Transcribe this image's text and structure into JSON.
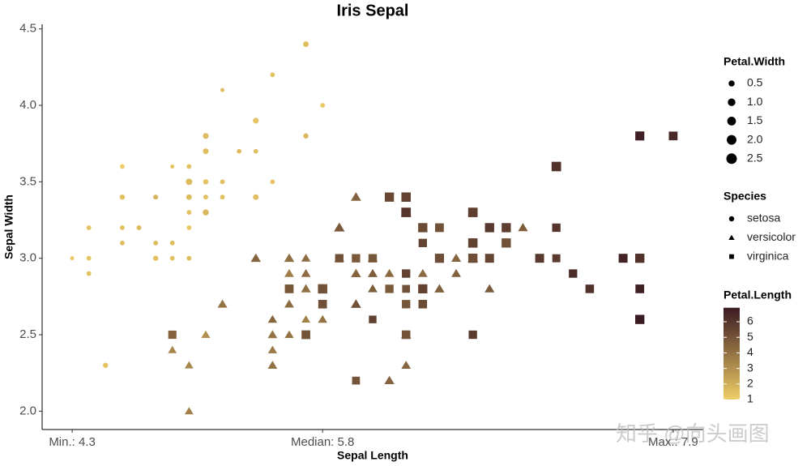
{
  "chart_data": {
    "type": "scatter",
    "title": "Iris Sepal",
    "x_label": "Sepal Length",
    "y_label": "Sepal Width",
    "xlim": [
      4.12,
      8.08
    ],
    "ylim": [
      1.88,
      4.53
    ],
    "xticks": [
      {
        "value": 4.3,
        "label": "Min.: 4.3"
      },
      {
        "value": 5.8,
        "label": "Median: 5.8"
      },
      {
        "value": 7.9,
        "label": "Max.: 7.9"
      }
    ],
    "yticks": [
      {
        "value": 2,
        "label": "2.0"
      },
      2.5,
      {
        "value": 3,
        "label": "3.0"
      },
      3.5,
      {
        "value": 4,
        "label": "4.0"
      },
      4.5
    ],
    "size_legend": {
      "title": "Petal.Width",
      "values": [
        0.5,
        {
          "value": 1,
          "label": "1.0"
        },
        1.5,
        {
          "value": 2,
          "label": "2.0"
        },
        2.5
      ]
    },
    "shape_legend": {
      "title": "Species"
    },
    "color_legend": {
      "title": "Petal.Length",
      "lim": [
        1,
        6.9
      ],
      "ticks": [
        1,
        2,
        3,
        4,
        5,
        6
      ],
      "color_low": "#efcd66",
      "color_high": "#3a1a22"
    },
    "watermark": "知乎 @向头画图",
    "series": [
      {
        "name": "setosa",
        "shape": "circle",
        "x": [
          5.1,
          4.9,
          4.7,
          4.6,
          5.0,
          5.4,
          4.6,
          5.0,
          4.4,
          4.9,
          5.4,
          4.8,
          4.8,
          4.3,
          5.8,
          5.7,
          5.4,
          5.1,
          5.7,
          5.1,
          5.4,
          5.1,
          4.6,
          5.1,
          4.8,
          5.0,
          5.0,
          5.2,
          5.2,
          4.7,
          4.8,
          5.4,
          5.2,
          5.5,
          4.9,
          5.0,
          5.5,
          4.9,
          4.4,
          5.1,
          5.0,
          4.5,
          4.4,
          5.0,
          5.1,
          4.8,
          5.1,
          4.6,
          5.3,
          5.0
        ],
        "values": [
          3.5,
          3.0,
          3.2,
          3.1,
          3.6,
          3.9,
          3.4,
          3.4,
          2.9,
          3.1,
          3.7,
          3.4,
          3.0,
          3.0,
          4.0,
          4.4,
          3.9,
          3.5,
          3.8,
          3.8,
          3.4,
          3.7,
          3.6,
          3.3,
          3.4,
          3.0,
          3.4,
          3.5,
          3.4,
          3.2,
          3.1,
          3.4,
          4.1,
          4.2,
          3.1,
          3.2,
          3.5,
          3.6,
          3.0,
          3.4,
          3.5,
          2.3,
          3.2,
          3.5,
          3.8,
          3.0,
          3.8,
          3.2,
          3.7,
          3.3
        ],
        "sizes": [
          0.2,
          0.2,
          0.2,
          0.2,
          0.2,
          0.4,
          0.3,
          0.2,
          0.2,
          0.1,
          0.2,
          0.2,
          0.1,
          0.1,
          0.2,
          0.4,
          0.4,
          0.3,
          0.3,
          0.3,
          0.2,
          0.4,
          0.2,
          0.5,
          0.2,
          0.2,
          0.4,
          0.2,
          0.2,
          0.2,
          0.2,
          0.4,
          0.1,
          0.2,
          0.2,
          0.2,
          0.2,
          0.1,
          0.2,
          0.2,
          0.3,
          0.3,
          0.2,
          0.6,
          0.4,
          0.3,
          0.2,
          0.2,
          0.2,
          0.2
        ],
        "color_values": [
          1.4,
          1.4,
          1.3,
          1.5,
          1.4,
          1.7,
          1.4,
          1.5,
          1.4,
          1.5,
          1.5,
          1.6,
          1.4,
          1.1,
          1.2,
          1.5,
          1.3,
          1.4,
          1.7,
          1.5,
          1.7,
          1.5,
          1.0,
          1.7,
          1.9,
          1.6,
          1.6,
          1.5,
          1.4,
          1.6,
          1.6,
          1.5,
          1.5,
          1.4,
          1.5,
          1.2,
          1.3,
          1.4,
          1.3,
          1.5,
          1.3,
          1.3,
          1.3,
          1.6,
          1.9,
          1.4,
          1.6,
          1.4,
          1.5,
          1.4
        ]
      },
      {
        "name": "versicolor",
        "shape": "triangle",
        "x": [
          7.0,
          6.4,
          6.9,
          5.5,
          6.5,
          5.7,
          6.3,
          4.9,
          6.6,
          5.2,
          5.0,
          5.9,
          6.0,
          6.1,
          5.6,
          6.7,
          5.6,
          5.8,
          6.2,
          5.6,
          5.9,
          6.1,
          6.3,
          6.1,
          6.4,
          6.6,
          6.8,
          6.7,
          6.0,
          5.7,
          5.5,
          5.5,
          5.8,
          6.0,
          5.4,
          6.0,
          6.7,
          6.3,
          5.6,
          5.5,
          5.5,
          6.1,
          5.8,
          5.0,
          5.6,
          5.7,
          5.7,
          6.2,
          5.1,
          5.7
        ],
        "values": [
          3.2,
          3.2,
          3.1,
          2.3,
          2.8,
          2.8,
          3.3,
          2.4,
          2.9,
          2.7,
          2.0,
          3.0,
          2.2,
          2.9,
          2.9,
          3.1,
          3.0,
          2.7,
          2.2,
          2.5,
          3.2,
          2.8,
          2.5,
          2.8,
          2.9,
          3.0,
          2.8,
          3.0,
          2.9,
          2.6,
          2.4,
          2.4,
          2.7,
          2.7,
          3.0,
          3.4,
          3.1,
          2.3,
          3.0,
          2.5,
          2.6,
          3.0,
          2.6,
          2.3,
          2.7,
          3.0,
          2.9,
          2.9,
          2.5,
          2.8
        ],
        "sizes": [
          1.4,
          1.5,
          1.5,
          1.3,
          1.5,
          1.3,
          1.6,
          1.0,
          1.3,
          1.4,
          1.0,
          1.5,
          1.0,
          1.4,
          1.3,
          1.4,
          1.5,
          1.0,
          1.5,
          1.1,
          1.8,
          1.3,
          1.5,
          1.2,
          1.3,
          1.4,
          1.4,
          1.7,
          1.5,
          1.0,
          1.1,
          1.0,
          1.2,
          1.6,
          1.5,
          1.6,
          1.5,
          1.3,
          1.3,
          1.3,
          1.2,
          1.4,
          1.2,
          1.0,
          1.3,
          1.2,
          1.3,
          1.3,
          1.1,
          1.3
        ],
        "color_values": [
          4.7,
          4.5,
          4.9,
          4.0,
          4.6,
          4.5,
          4.7,
          3.3,
          4.6,
          3.9,
          3.5,
          4.2,
          4.0,
          4.7,
          3.6,
          4.4,
          4.5,
          4.1,
          4.5,
          3.9,
          4.8,
          4.0,
          4.9,
          4.7,
          4.3,
          4.4,
          4.8,
          5.0,
          4.5,
          3.5,
          3.8,
          3.7,
          3.9,
          5.1,
          4.5,
          4.5,
          4.7,
          4.4,
          4.1,
          4.0,
          4.4,
          4.6,
          4.0,
          3.3,
          4.2,
          4.2,
          4.2,
          4.3,
          3.0,
          4.1
        ]
      },
      {
        "name": "virginica",
        "shape": "square",
        "x": [
          6.3,
          5.8,
          7.1,
          6.3,
          6.5,
          7.6,
          4.9,
          7.3,
          6.7,
          7.2,
          6.5,
          6.4,
          6.8,
          5.7,
          5.8,
          6.4,
          6.5,
          7.7,
          7.7,
          6.0,
          6.9,
          5.6,
          7.7,
          6.3,
          6.7,
          7.2,
          6.2,
          6.1,
          6.4,
          7.2,
          7.4,
          7.9,
          6.4,
          6.3,
          6.1,
          7.7,
          6.3,
          6.4,
          6.0,
          6.9,
          6.7,
          6.9,
          5.8,
          6.8,
          6.7,
          6.7,
          6.3,
          6.5,
          6.2,
          5.9
        ],
        "values": [
          3.3,
          2.7,
          3.0,
          2.9,
          3.0,
          3.0,
          2.5,
          2.9,
          2.5,
          3.6,
          3.2,
          2.7,
          3.0,
          2.5,
          2.8,
          3.2,
          3.0,
          3.8,
          2.6,
          2.2,
          3.2,
          2.8,
          2.8,
          2.7,
          3.3,
          3.2,
          2.8,
          3.0,
          2.8,
          3.0,
          2.8,
          3.8,
          2.8,
          2.8,
          2.6,
          3.0,
          3.4,
          3.1,
          3.0,
          3.1,
          3.1,
          3.1,
          2.7,
          3.2,
          3.3,
          3.0,
          2.5,
          3.0,
          3.4,
          3.0
        ],
        "sizes": [
          2.5,
          1.9,
          2.1,
          1.8,
          2.2,
          2.1,
          1.7,
          1.8,
          1.8,
          2.5,
          2.0,
          1.9,
          2.1,
          2.0,
          2.4,
          2.3,
          1.8,
          2.2,
          2.3,
          1.5,
          2.3,
          2.0,
          2.0,
          1.8,
          2.1,
          1.8,
          1.8,
          1.8,
          2.1,
          1.6,
          1.9,
          2.0,
          2.2,
          1.5,
          1.4,
          2.3,
          2.4,
          1.8,
          1.8,
          2.1,
          2.4,
          2.3,
          1.9,
          2.3,
          2.5,
          2.3,
          1.9,
          2.0,
          2.3,
          1.8
        ],
        "color_values": [
          6.0,
          5.1,
          5.9,
          5.6,
          5.8,
          6.6,
          4.5,
          6.3,
          5.8,
          6.1,
          5.1,
          5.3,
          5.5,
          5.0,
          5.1,
          5.3,
          5.5,
          6.7,
          6.9,
          5.0,
          5.7,
          4.9,
          6.7,
          4.9,
          5.7,
          6.0,
          4.8,
          4.9,
          5.6,
          5.8,
          6.1,
          6.4,
          5.6,
          5.1,
          5.6,
          6.1,
          5.6,
          5.5,
          4.8,
          5.4,
          5.6,
          5.1,
          5.1,
          5.9,
          5.7,
          5.2,
          5.0,
          5.2,
          5.4,
          5.1
        ]
      }
    ]
  }
}
